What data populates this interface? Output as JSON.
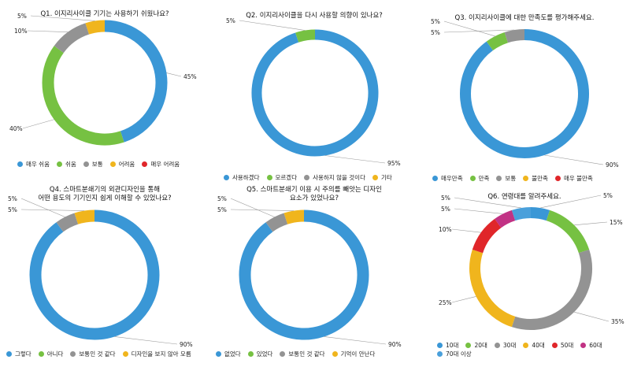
{
  "colors": {
    "blue": "#3a97d6",
    "green": "#76c142",
    "gray": "#939393",
    "yellow": "#f0b51d",
    "red": "#e0262a",
    "magenta": "#c13284",
    "sky": "#4aa0db"
  },
  "chart_data": [
    {
      "type": "pie",
      "title": "Q1. 이지리사이클 기기는 사용하기 쉬웠나요?",
      "categories": [
        "매우 쉬움",
        "쉬움",
        "보통",
        "어려움",
        "매우 어려움"
      ],
      "values": [
        45,
        40,
        10,
        5,
        0
      ],
      "value_labels": [
        "45%",
        "40%",
        "10%",
        "5%",
        ""
      ],
      "colors": [
        "#3a97d6",
        "#76c142",
        "#939393",
        "#f0b51d",
        "#e0262a"
      ]
    },
    {
      "type": "pie",
      "title": "Q2. 이지리사이클을 다시 사용할 의향이 있나요?",
      "categories": [
        "사용하겠다",
        "모르겠다",
        "사용하지 않을 것이다",
        "기타"
      ],
      "values": [
        95,
        5,
        0,
        0
      ],
      "value_labels": [
        "95%",
        "5%",
        "",
        ""
      ],
      "colors": [
        "#3a97d6",
        "#76c142",
        "#939393",
        "#f0b51d"
      ]
    },
    {
      "type": "pie",
      "title": "Q3. 이지리사이클에 대한 만족도를 평가해주세요.",
      "categories": [
        "매우만족",
        "만족",
        "보통",
        "불만족",
        "매우 불만족"
      ],
      "values": [
        90,
        5,
        5,
        0,
        0
      ],
      "value_labels": [
        "90%",
        "5%",
        "5%",
        "",
        ""
      ],
      "colors": [
        "#3a97d6",
        "#76c142",
        "#939393",
        "#f0b51d",
        "#e0262a"
      ]
    },
    {
      "type": "pie",
      "title": "Q4. 스마트분쇄기의 외관디자인을 통해\n어떤 용도의 기기인지 쉽게 이해할 수 있었나요?",
      "categories": [
        "그렇다",
        "아니다",
        "보통인 것 같다",
        "디자인을 보지 않아 모름"
      ],
      "values": [
        90,
        0,
        5,
        5
      ],
      "value_labels": [
        "90%",
        "",
        "5%",
        "5%"
      ],
      "colors": [
        "#3a97d6",
        "#76c142",
        "#939393",
        "#f0b51d"
      ]
    },
    {
      "type": "pie",
      "title": "Q5. 스마트분쇄기 이용 시 주의를 빼앗는 디자인\n요소가 있었나요?",
      "categories": [
        "없었다",
        "있었다",
        "보통인 것 같다",
        "기억이 안난다"
      ],
      "values": [
        90,
        0,
        5,
        5
      ],
      "value_labels": [
        "90%",
        "",
        "5%",
        "5%"
      ],
      "colors": [
        "#3a97d6",
        "#76c142",
        "#939393",
        "#f0b51d"
      ]
    },
    {
      "type": "pie",
      "title": "Q6. 연령대를 알려주세요.",
      "categories": [
        "10대",
        "20대",
        "30대",
        "40대",
        "50대",
        "60대",
        "70대 이상"
      ],
      "values": [
        5,
        15,
        35,
        25,
        10,
        5,
        5
      ],
      "value_labels": [
        "5%",
        "15%",
        "35%",
        "25%",
        "10%",
        "5%",
        "5%"
      ],
      "colors": [
        "#3a97d6",
        "#76c142",
        "#939393",
        "#f0b51d",
        "#e0262a",
        "#c13284",
        "#4aa0db"
      ]
    }
  ]
}
